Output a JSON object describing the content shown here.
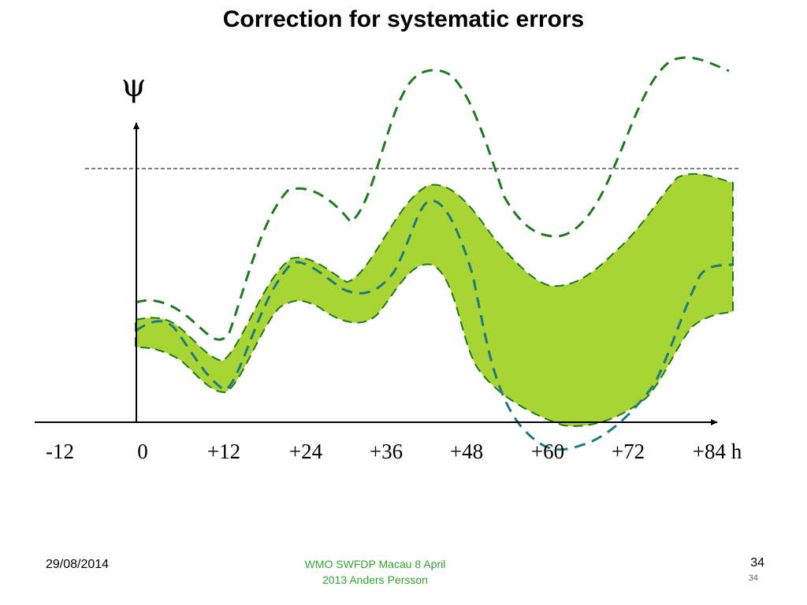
{
  "title": "Correction for systematic errors",
  "axis": {
    "y_symbol": "ψ",
    "x_ticks": [
      "-12",
      "0",
      "+12",
      "+24",
      "+36",
      "+48",
      "+60",
      "+72",
      "+84 h"
    ]
  },
  "colors": {
    "band_fill": "#a8d534",
    "band_edge": "#1e7a1e",
    "envelope": "#1e7a1e",
    "corrected": "#1a7c80",
    "threshold": "#000000",
    "axis": "#000000"
  },
  "footer": {
    "date": "29/08/2014",
    "source_line1": "WMO SWFDP Macau 8 April",
    "source_line2": "2013  Anders Persson",
    "page": "34",
    "page_small": "34"
  }
}
